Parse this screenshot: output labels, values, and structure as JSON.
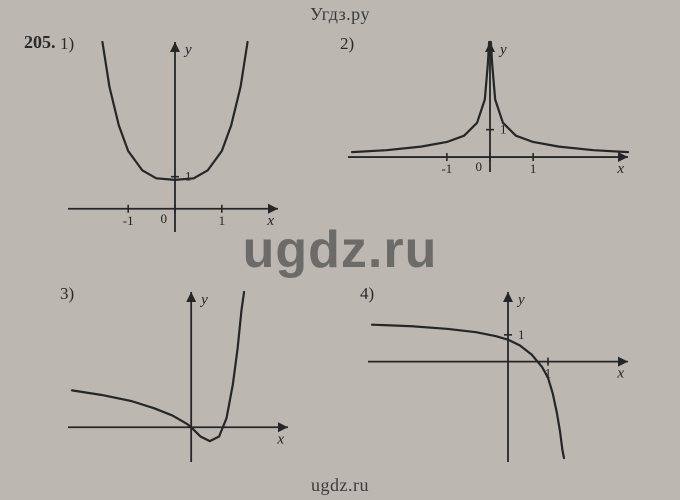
{
  "site": {
    "header": "Угдз.ру",
    "footer": "ugdz.ru",
    "watermark": "ugdz.ru"
  },
  "exercise": {
    "number": "205."
  },
  "charts": {
    "c1": {
      "label": "1)",
      "type": "line",
      "x_axis_label": "x",
      "y_axis_label": "y",
      "xlim": [
        -2.2,
        2.2
      ],
      "ylim": [
        -0.6,
        5.2
      ],
      "xticks": [
        -1,
        0,
        1
      ],
      "yticks": [
        1
      ],
      "curve_points": [
        [
          -1.55,
          5.2
        ],
        [
          -1.4,
          3.8
        ],
        [
          -1.2,
          2.6
        ],
        [
          -1,
          1.8
        ],
        [
          -0.7,
          1.2
        ],
        [
          -0.4,
          0.95
        ],
        [
          0,
          0.9
        ],
        [
          0.4,
          0.95
        ],
        [
          0.7,
          1.2
        ],
        [
          1,
          1.8
        ],
        [
          1.2,
          2.6
        ],
        [
          1.4,
          3.8
        ],
        [
          1.55,
          5.2
        ]
      ],
      "stroke_color": "#262626",
      "stroke_width": 2.2,
      "background_color": "#bcb7b0"
    },
    "c2": {
      "label": "2)",
      "type": "line",
      "x_axis_label": "x",
      "y_axis_label": "y",
      "xlim": [
        -3.2,
        3.2
      ],
      "ylim": [
        -0.4,
        4.2
      ],
      "xticks": [
        -1,
        0,
        1
      ],
      "yticks": [
        1
      ],
      "curve_points": [
        [
          -3.2,
          0.18
        ],
        [
          -2.4,
          0.25
        ],
        [
          -1.6,
          0.38
        ],
        [
          -1,
          0.55
        ],
        [
          -0.6,
          0.78
        ],
        [
          -0.3,
          1.25
        ],
        [
          -0.12,
          2.1
        ],
        [
          -0.05,
          3.4
        ],
        [
          -0.02,
          4.2
        ],
        [
          0.02,
          4.2
        ],
        [
          0.05,
          3.4
        ],
        [
          0.12,
          2.1
        ],
        [
          0.3,
          1.25
        ],
        [
          0.6,
          0.78
        ],
        [
          1,
          0.55
        ],
        [
          1.6,
          0.38
        ],
        [
          2.4,
          0.25
        ],
        [
          3.2,
          0.18
        ]
      ],
      "stroke_color": "#262626",
      "stroke_width": 2.2,
      "background_color": "#bcb7b0"
    },
    "c3": {
      "label": "3)",
      "type": "line",
      "x_axis_label": "x",
      "y_axis_label": "y",
      "xlim": [
        -3.2,
        2.6
      ],
      "ylim": [
        -1.0,
        4.4
      ],
      "curve_points": [
        [
          -3.2,
          1.2
        ],
        [
          -2.4,
          1.05
        ],
        [
          -1.6,
          0.85
        ],
        [
          -1,
          0.62
        ],
        [
          -0.5,
          0.38
        ],
        [
          -0.1,
          0.1
        ],
        [
          0,
          0
        ],
        [
          0.1,
          -0.12
        ],
        [
          0.25,
          -0.3
        ],
        [
          0.5,
          -0.45
        ],
        [
          0.75,
          -0.3
        ],
        [
          0.95,
          0.3
        ],
        [
          1.12,
          1.4
        ],
        [
          1.25,
          2.6
        ],
        [
          1.35,
          3.8
        ],
        [
          1.42,
          4.4
        ]
      ],
      "stroke_color": "#262626",
      "stroke_width": 2.2,
      "background_color": "#bcb7b0"
    },
    "c4": {
      "label": "4)",
      "type": "line",
      "x_axis_label": "x",
      "y_axis_label": "y",
      "xlim": [
        -3.4,
        3.0
      ],
      "ylim": [
        -3.6,
        2.6
      ],
      "xticks": [
        1
      ],
      "yticks": [
        1
      ],
      "curve_points": [
        [
          -3.4,
          1.38
        ],
        [
          -2.4,
          1.32
        ],
        [
          -1.5,
          1.22
        ],
        [
          -0.8,
          1.1
        ],
        [
          -0.3,
          0.95
        ],
        [
          0,
          0.82
        ],
        [
          0.3,
          0.6
        ],
        [
          0.6,
          0.25
        ],
        [
          0.85,
          -0.2
        ],
        [
          1,
          -0.6
        ],
        [
          1.12,
          -1.2
        ],
        [
          1.22,
          -1.9
        ],
        [
          1.3,
          -2.6
        ],
        [
          1.36,
          -3.3
        ],
        [
          1.4,
          -3.6
        ]
      ],
      "stroke_color": "#262626",
      "stroke_width": 2.2,
      "background_color": "#bcb7b0"
    }
  }
}
